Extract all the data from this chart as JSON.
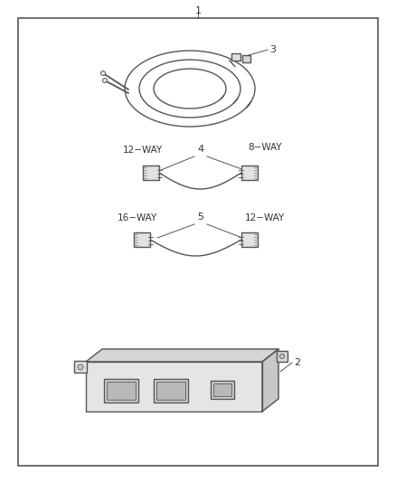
{
  "bg_color": "#ffffff",
  "line_color": "#555555",
  "text_color": "#333333",
  "label_1": "1",
  "label_2": "2",
  "label_3": "3",
  "label_4": "4",
  "label_5": "5",
  "label_12way_top": "12−WAY",
  "label_8way": "8−WAY",
  "label_16way": "16−WAY",
  "label_12way_bot": "12−WAY",
  "fig_width": 4.38,
  "fig_height": 5.33,
  "dpi": 100
}
